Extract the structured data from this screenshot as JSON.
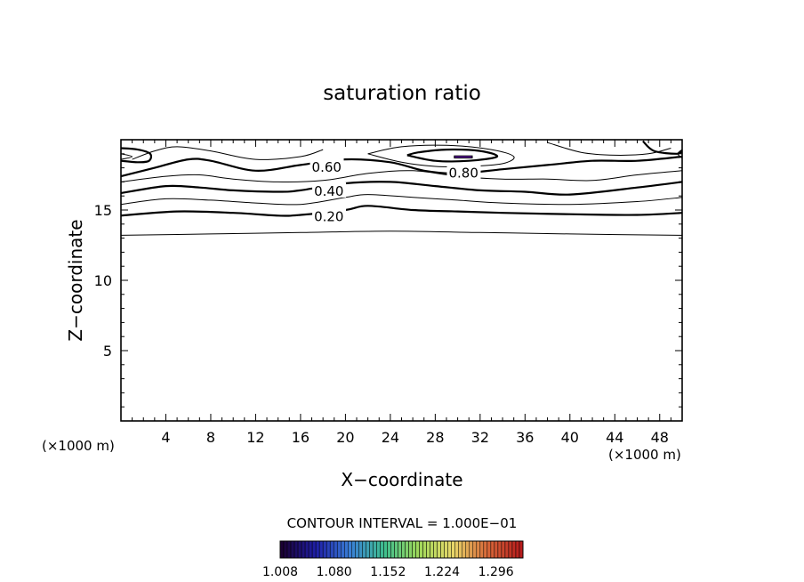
{
  "chart_data": {
    "type": "contour",
    "title": "saturation ratio",
    "xlabel": "X−coordinate",
    "ylabel": "Z−coordinate",
    "x_unit_left": "(×1000 m)",
    "x_unit_right": "(×1000 m)",
    "xlim": [
      0,
      50
    ],
    "ylim": [
      0,
      20
    ],
    "x_ticks": [
      4,
      8,
      12,
      16,
      20,
      24,
      28,
      32,
      36,
      40,
      44,
      48
    ],
    "y_ticks": [
      5,
      10,
      15
    ],
    "contour_interval_text": "CONTOUR INTERVAL = 1.000E−01",
    "contour_labels": [
      {
        "text": "0.60",
        "x": 17.0,
        "z": 18.1
      },
      {
        "text": "0.40",
        "x": 17.2,
        "z": 16.4
      },
      {
        "text": "0.20",
        "x": 17.2,
        "z": 14.6
      },
      {
        "text": "0.80",
        "x": 29.2,
        "z": 17.7
      }
    ],
    "contours": [
      {
        "level": 0.1,
        "bold": false,
        "x": [
          0,
          8,
          16,
          24,
          32,
          40,
          50
        ],
        "z": [
          13.2,
          13.3,
          13.4,
          13.5,
          13.4,
          13.3,
          13.2
        ]
      },
      {
        "level": 0.2,
        "bold": true,
        "x": [
          0,
          5,
          10,
          14,
          16,
          20,
          22,
          26,
          30,
          34,
          40,
          46,
          50
        ],
        "z": [
          14.6,
          14.9,
          14.8,
          14.6,
          14.65,
          15.0,
          15.3,
          15.0,
          14.9,
          14.8,
          14.7,
          14.65,
          14.8
        ]
      },
      {
        "level": 0.3,
        "bold": false,
        "x": [
          0,
          4,
          8,
          12,
          16,
          20,
          22,
          26,
          30,
          34,
          40,
          46,
          50
        ],
        "z": [
          15.4,
          15.8,
          15.7,
          15.5,
          15.4,
          15.9,
          16.1,
          15.9,
          15.7,
          15.5,
          15.4,
          15.6,
          15.9
        ]
      },
      {
        "level": 0.4,
        "bold": true,
        "x": [
          0,
          4,
          7,
          10,
          14,
          16,
          20,
          24,
          28,
          32,
          36,
          40,
          46,
          50
        ],
        "z": [
          16.2,
          16.7,
          16.6,
          16.4,
          16.3,
          16.4,
          16.9,
          17.0,
          16.7,
          16.4,
          16.3,
          16.1,
          16.6,
          17.0
        ]
      },
      {
        "level": 0.5,
        "bold": false,
        "x": [
          0,
          4,
          7,
          10,
          14,
          18,
          22,
          26,
          30,
          34,
          38,
          42,
          46,
          50
        ],
        "z": [
          17.0,
          17.4,
          17.5,
          17.2,
          17.0,
          17.1,
          17.6,
          17.8,
          17.4,
          17.2,
          17.2,
          17.1,
          17.5,
          17.8
        ]
      },
      {
        "level": 0.6,
        "bold": true,
        "x": [
          0,
          3,
          6,
          8,
          12,
          16,
          20,
          24,
          27,
          30,
          34,
          38,
          42,
          46,
          50
        ],
        "z": [
          17.4,
          18.0,
          18.6,
          18.5,
          17.8,
          18.2,
          18.6,
          18.4,
          17.8,
          17.6,
          17.9,
          18.2,
          18.5,
          18.5,
          18.8
        ]
      },
      {
        "level": 0.7,
        "bold": false,
        "x": [
          1,
          3,
          5,
          8,
          12,
          16,
          18
        ],
        "z": [
          18.6,
          19.2,
          19.5,
          19.2,
          18.6,
          18.8,
          19.3
        ]
      },
      {
        "level": 0.7,
        "bold": false,
        "x": [
          22,
          25,
          28,
          31,
          34,
          35,
          33,
          29,
          25,
          22
        ],
        "z": [
          19.0,
          18.4,
          18.1,
          18.1,
          18.3,
          18.8,
          19.3,
          19.6,
          19.5,
          19.0
        ]
      },
      {
        "level": 0.7,
        "bold": false,
        "x": [
          38,
          41,
          44,
          47,
          49
        ],
        "z": [
          19.8,
          19.1,
          18.9,
          19.0,
          19.4
        ]
      },
      {
        "level": 0.8,
        "bold": true,
        "x": [
          25.5,
          28,
          31,
          33.5,
          32,
          29,
          26.5,
          25.5
        ],
        "z": [
          18.9,
          18.5,
          18.5,
          18.8,
          19.2,
          19.3,
          19.1,
          18.9
        ]
      },
      {
        "level": 0.8,
        "bold": true,
        "x": [
          0,
          1.5,
          2.6,
          2.5,
          1.5,
          0
        ],
        "z": [
          19.4,
          19.3,
          19.0,
          18.5,
          18.4,
          18.5
        ]
      },
      {
        "level": 0.8,
        "bold": true,
        "x": [
          46.5,
          47.5,
          49.5,
          50
        ],
        "z": [
          19.9,
          19.2,
          19.0,
          19.2
        ]
      },
      {
        "level": 0.9,
        "bold": false,
        "x": [
          0,
          1,
          0
        ],
        "z": [
          19.0,
          18.8,
          18.6
        ]
      },
      {
        "level": 0.9,
        "bold": false,
        "x": [
          50,
          49.6,
          50
        ],
        "z": [
          19.3,
          19.0,
          18.7
        ]
      }
    ],
    "shaded_region": {
      "x": [
        29.7,
        31.3
      ],
      "z": [
        18.7,
        18.85
      ],
      "color": "#6a1cb0"
    },
    "colorbar": {
      "tick_labels": [
        "1.008",
        "1.080",
        "1.152",
        "1.224",
        "1.296"
      ],
      "range": [
        1.008,
        1.332
      ],
      "colors": [
        "#1a0033",
        "#1f1fa8",
        "#3a7fd6",
        "#3fbf8f",
        "#9fd85a",
        "#e8d86a",
        "#d96a3a",
        "#b81c1c"
      ]
    }
  }
}
